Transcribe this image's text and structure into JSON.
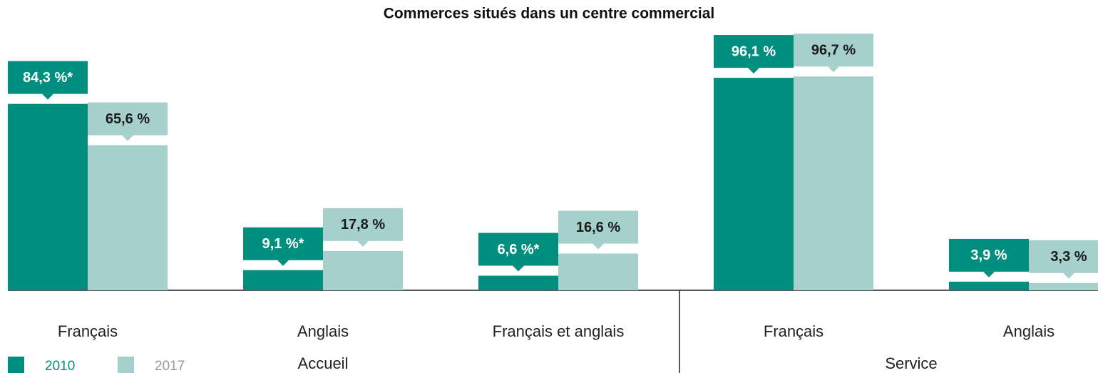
{
  "chart_data": {
    "type": "bar",
    "title": "Commerces situés dans un centre commercial",
    "groups": [
      {
        "name": "Accueil",
        "categories": [
          "Français",
          "Anglais",
          "Français et anglais"
        ]
      },
      {
        "name": "Service",
        "categories": [
          "Français",
          "Anglais"
        ]
      }
    ],
    "series": [
      {
        "name": "2010",
        "color": "#008f7e",
        "values": [
          84.3,
          9.1,
          6.6,
          96.1,
          3.9
        ],
        "value_labels": [
          "84,3 %*",
          "9,1 %*",
          "6,6 %*",
          "96,1 %",
          "3,9 %"
        ]
      },
      {
        "name": "2017",
        "color": "#a6d0cb",
        "values": [
          65.6,
          17.8,
          16.6,
          96.7,
          3.3
        ],
        "value_labels": [
          "65,6 %",
          "17,8 %",
          "16,6 %",
          "96,7 %",
          "3,3 %"
        ]
      }
    ],
    "ylim": [
      0,
      100
    ]
  }
}
